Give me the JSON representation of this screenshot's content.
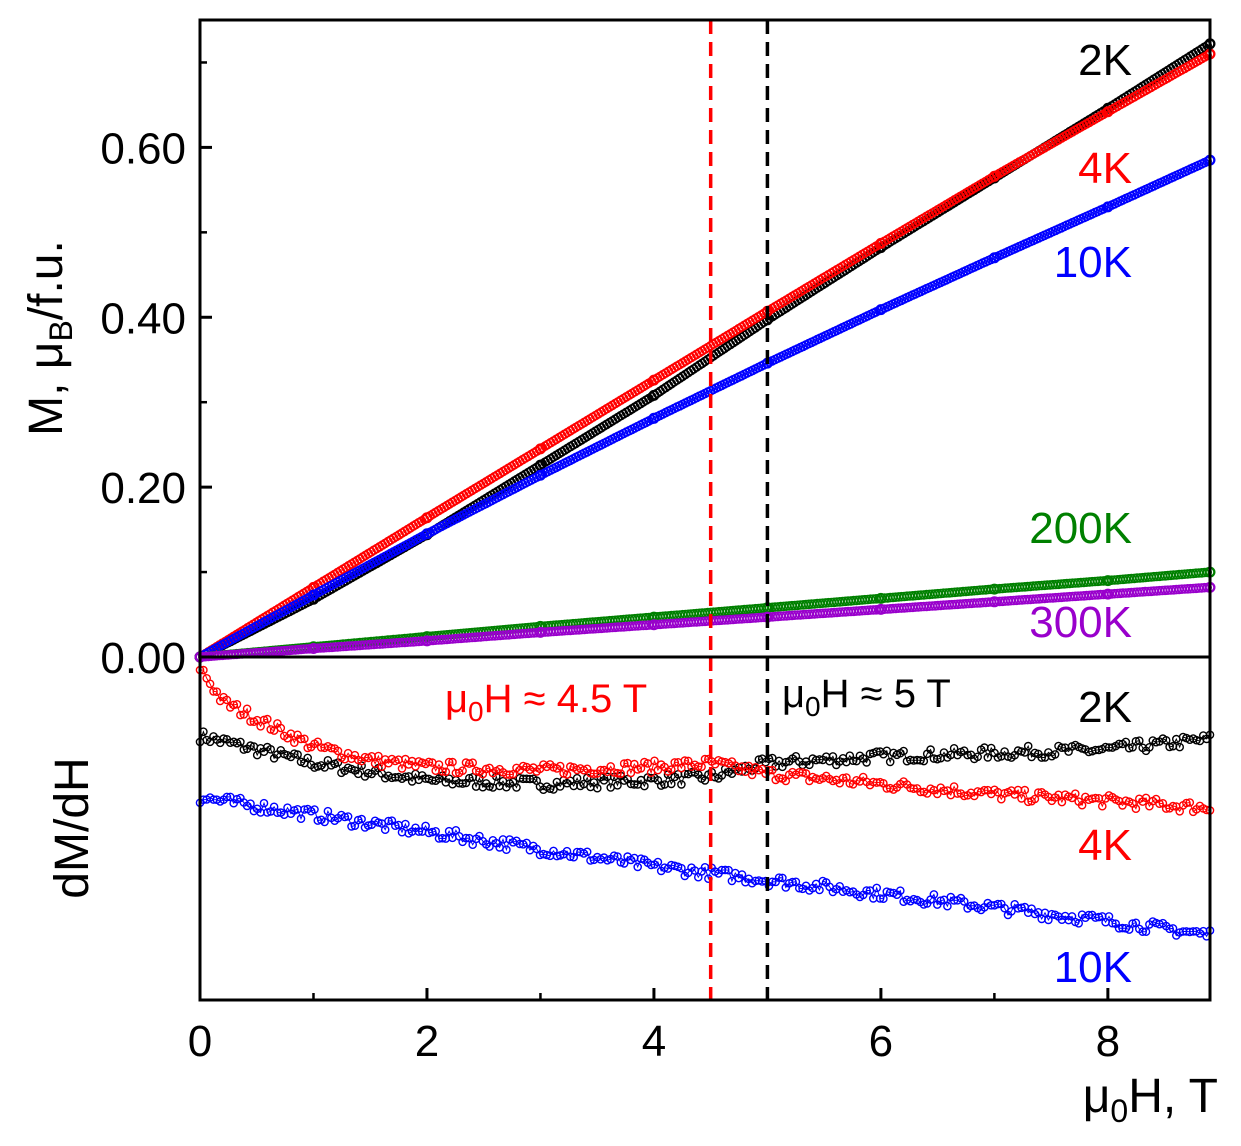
{
  "chart_data": [
    {
      "type": "scatter",
      "panel": "top",
      "title": "",
      "xlabel": "",
      "ylabel_prefix": "M, μ",
      "ylabel_sub": "B",
      "ylabel_suffix": "/f.u.",
      "xlim": [
        0,
        8.9
      ],
      "ylim": [
        0,
        0.75
      ],
      "yticks": [
        {
          "value": 0.0,
          "label": "0.00"
        },
        {
          "value": 0.2,
          "label": "0.20"
        },
        {
          "value": 0.4,
          "label": "0.40"
        },
        {
          "value": 0.6,
          "label": "0.60"
        }
      ],
      "series": [
        {
          "name": "2K",
          "label": "2K",
          "color": "#000000",
          "x": [
            0,
            1,
            2,
            3,
            4,
            5,
            6,
            7,
            8,
            8.9
          ],
          "y": [
            0,
            0.068,
            0.144,
            0.226,
            0.308,
            0.397,
            0.482,
            0.564,
            0.646,
            0.722
          ]
        },
        {
          "name": "4K",
          "label": "4K",
          "color": "#ff0000",
          "x": [
            0,
            1,
            2,
            3,
            4,
            5,
            6,
            7,
            8,
            8.9
          ],
          "y": [
            0,
            0.082,
            0.164,
            0.245,
            0.326,
            0.407,
            0.487,
            0.566,
            0.642,
            0.71
          ]
        },
        {
          "name": "10K",
          "label": "10K",
          "color": "#0000ff",
          "x": [
            0,
            1,
            2,
            3,
            4,
            5,
            6,
            7,
            8,
            8.9
          ],
          "y": [
            0,
            0.073,
            0.145,
            0.214,
            0.281,
            0.346,
            0.409,
            0.47,
            0.53,
            0.585
          ]
        },
        {
          "name": "200K",
          "label": "200K",
          "color": "#008000",
          "x": [
            0,
            1,
            2,
            3,
            4,
            5,
            6,
            7,
            8,
            8.9
          ],
          "y": [
            0,
            0.012,
            0.024,
            0.036,
            0.047,
            0.058,
            0.069,
            0.08,
            0.09,
            0.1
          ]
        },
        {
          "name": "300K",
          "label": "300K",
          "color": "#9900cc",
          "x": [
            0,
            1,
            2,
            3,
            4,
            5,
            6,
            7,
            8,
            8.9
          ],
          "y": [
            0,
            0.01,
            0.019,
            0.029,
            0.038,
            0.047,
            0.056,
            0.065,
            0.074,
            0.082
          ]
        }
      ],
      "vlines": [
        {
          "x": 4.5,
          "color": "#ff0000",
          "style": "dashed"
        },
        {
          "x": 5.0,
          "color": "#000000",
          "style": "dashed"
        }
      ]
    },
    {
      "type": "scatter",
      "panel": "bottom",
      "title": "",
      "xlabel_prefix": "μ",
      "xlabel_sub": "0",
      "xlabel_suffix": "H, T",
      "ylabel": "dM/dH",
      "xlim": [
        0,
        8.9
      ],
      "ylim": [
        0,
        1
      ],
      "xticks": [
        {
          "value": 0,
          "label": "0"
        },
        {
          "value": 2,
          "label": "2"
        },
        {
          "value": 4,
          "label": "4"
        },
        {
          "value": 6,
          "label": "6"
        },
        {
          "value": 8,
          "label": "8"
        }
      ],
      "yaxis_units": "arbitrary",
      "series": [
        {
          "name": "2K",
          "label": "2K",
          "color": "#000000",
          "x": [
            0,
            0.5,
            1,
            2,
            3,
            4,
            4.5,
            5,
            6,
            7,
            8,
            8.9
          ],
          "y": [
            0.77,
            0.73,
            0.69,
            0.64,
            0.63,
            0.64,
            0.65,
            0.69,
            0.71,
            0.72,
            0.73,
            0.76
          ]
        },
        {
          "name": "4K",
          "label": "4K",
          "color": "#ff0000",
          "x": [
            0,
            0.2,
            0.5,
            1,
            1.5,
            2,
            3,
            4,
            4.5,
            5,
            6,
            7,
            8,
            8.9
          ],
          "y": [
            0.97,
            0.87,
            0.82,
            0.74,
            0.7,
            0.68,
            0.67,
            0.68,
            0.69,
            0.66,
            0.63,
            0.6,
            0.58,
            0.56
          ]
        },
        {
          "name": "10K",
          "label": "10K",
          "color": "#0000ff",
          "x": [
            0,
            1,
            2,
            3,
            4,
            4.5,
            5,
            6,
            7,
            8,
            8.9
          ],
          "y": [
            0.59,
            0.54,
            0.49,
            0.44,
            0.39,
            0.37,
            0.35,
            0.31,
            0.27,
            0.23,
            0.19
          ]
        }
      ],
      "annotations": [
        {
          "id": "a45",
          "prefix": "μ",
          "sub": "0",
          "text": "H ≈ 4.5 T",
          "color": "#ff0000"
        },
        {
          "id": "a5",
          "prefix": "μ",
          "sub": "0",
          "text": "H ≈ 5 T",
          "color": "#000000"
        }
      ],
      "vlines": [
        {
          "x": 4.5,
          "color": "#ff0000",
          "style": "dashed"
        },
        {
          "x": 5.0,
          "color": "#000000",
          "style": "dashed"
        }
      ]
    }
  ]
}
